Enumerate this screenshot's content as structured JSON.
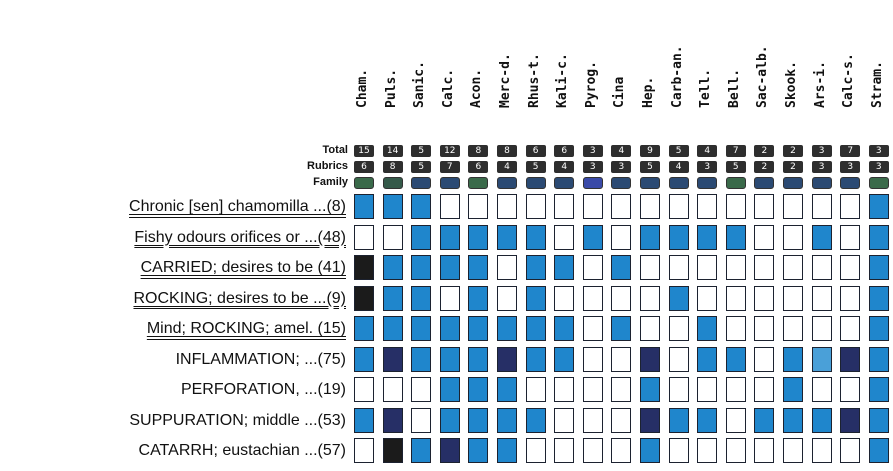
{
  "header": {
    "total_label": "Total",
    "rubrics_label": "Rubrics",
    "family_label": "Family"
  },
  "remedies": [
    {
      "name": "Cham.",
      "total": "15",
      "rubrics": "6",
      "family": "#3a6a4a"
    },
    {
      "name": "Puls.",
      "total": "14",
      "rubrics": "8",
      "family": "#355a4a"
    },
    {
      "name": "Sanic.",
      "total": "5",
      "rubrics": "5",
      "family": "#2b4a73"
    },
    {
      "name": "Calc.",
      "total": "12",
      "rubrics": "7",
      "family": "#2b4a73"
    },
    {
      "name": "Acon.",
      "total": "8",
      "rubrics": "6",
      "family": "#3a6a4a"
    },
    {
      "name": "Merc-d.",
      "total": "8",
      "rubrics": "4",
      "family": "#2b4a73"
    },
    {
      "name": "Rhus-t.",
      "total": "6",
      "rubrics": "5",
      "family": "#2b4a73"
    },
    {
      "name": "Kali-c.",
      "total": "6",
      "rubrics": "4",
      "family": "#2b4a73"
    },
    {
      "name": "Pyrog.",
      "total": "3",
      "rubrics": "3",
      "family": "#3a4aa8"
    },
    {
      "name": "Cina",
      "total": "4",
      "rubrics": "3",
      "family": "#2b4a73"
    },
    {
      "name": "Hep.",
      "total": "9",
      "rubrics": "5",
      "family": "#2b4a73"
    },
    {
      "name": "Carb-an.",
      "total": "5",
      "rubrics": "4",
      "family": "#2b4a73"
    },
    {
      "name": "Tell.",
      "total": "4",
      "rubrics": "3",
      "family": "#2b4a73"
    },
    {
      "name": "Bell.",
      "total": "7",
      "rubrics": "5",
      "family": "#3a6a4a"
    },
    {
      "name": "Sac-alb.",
      "total": "2",
      "rubrics": "2",
      "family": "#2b4a73"
    },
    {
      "name": "Skook.",
      "total": "2",
      "rubrics": "2",
      "family": "#2b4a73"
    },
    {
      "name": "Ars-i.",
      "total": "3",
      "rubrics": "3",
      "family": "#2b4a73"
    },
    {
      "name": "Calc-s.",
      "total": "7",
      "rubrics": "3",
      "family": "#2b4a73"
    },
    {
      "name": "Stram.",
      "total": "3",
      "rubrics": "3",
      "family": "#3a6a4a"
    }
  ],
  "rubrics": [
    {
      "label": "Chronic [sen] chamomilla ...(8)",
      "linked": true,
      "cells": [
        2,
        2,
        2,
        0,
        0,
        0,
        0,
        0,
        0,
        0,
        0,
        0,
        0,
        0,
        0,
        0,
        0,
        0,
        2
      ]
    },
    {
      "label": "Fishy odours orifices or ...(48)",
      "linked": true,
      "cells": [
        0,
        0,
        2,
        2,
        2,
        2,
        2,
        0,
        2,
        0,
        2,
        2,
        2,
        2,
        0,
        0,
        2,
        0,
        2
      ]
    },
    {
      "label": "CARRIED; desires to be (41)",
      "linked": true,
      "cells": [
        4,
        2,
        2,
        2,
        2,
        0,
        2,
        2,
        0,
        2,
        0,
        0,
        0,
        0,
        0,
        0,
        0,
        0,
        2
      ]
    },
    {
      "label": "ROCKING; desires to be ...(9)",
      "linked": true,
      "cells": [
        4,
        2,
        2,
        0,
        2,
        0,
        2,
        0,
        0,
        0,
        0,
        2,
        0,
        0,
        0,
        0,
        0,
        0,
        2
      ]
    },
    {
      "label": "Mind; ROCKING; amel. (15)",
      "linked": true,
      "cells": [
        2,
        2,
        2,
        2,
        2,
        2,
        2,
        2,
        0,
        2,
        0,
        0,
        2,
        0,
        0,
        0,
        0,
        0,
        2
      ]
    },
    {
      "label": "INFLAMMATION; ...(75)",
      "linked": false,
      "cells": [
        2,
        3,
        2,
        2,
        2,
        3,
        2,
        2,
        0,
        0,
        3,
        0,
        2,
        2,
        0,
        2,
        1,
        3,
        2
      ]
    },
    {
      "label": "PERFORATION, ...(19)",
      "linked": false,
      "cells": [
        0,
        0,
        0,
        2,
        2,
        2,
        0,
        0,
        0,
        0,
        2,
        0,
        0,
        0,
        0,
        2,
        0,
        0,
        2
      ]
    },
    {
      "label": "SUPPURATION; middle ...(53)",
      "linked": false,
      "cells": [
        2,
        3,
        0,
        2,
        2,
        2,
        2,
        0,
        0,
        0,
        3,
        2,
        2,
        0,
        2,
        2,
        2,
        3,
        2
      ]
    },
    {
      "label": "CATARRH; eustachian ...(57)",
      "linked": false,
      "cells": [
        0,
        4,
        2,
        3,
        2,
        2,
        0,
        0,
        0,
        0,
        2,
        0,
        0,
        0,
        0,
        0,
        0,
        0,
        2
      ]
    }
  ],
  "cell_colors": [
    "#ffffff",
    "#4aa0d8",
    "#1f86cc",
    "#262f66",
    "#1b1b1b"
  ]
}
